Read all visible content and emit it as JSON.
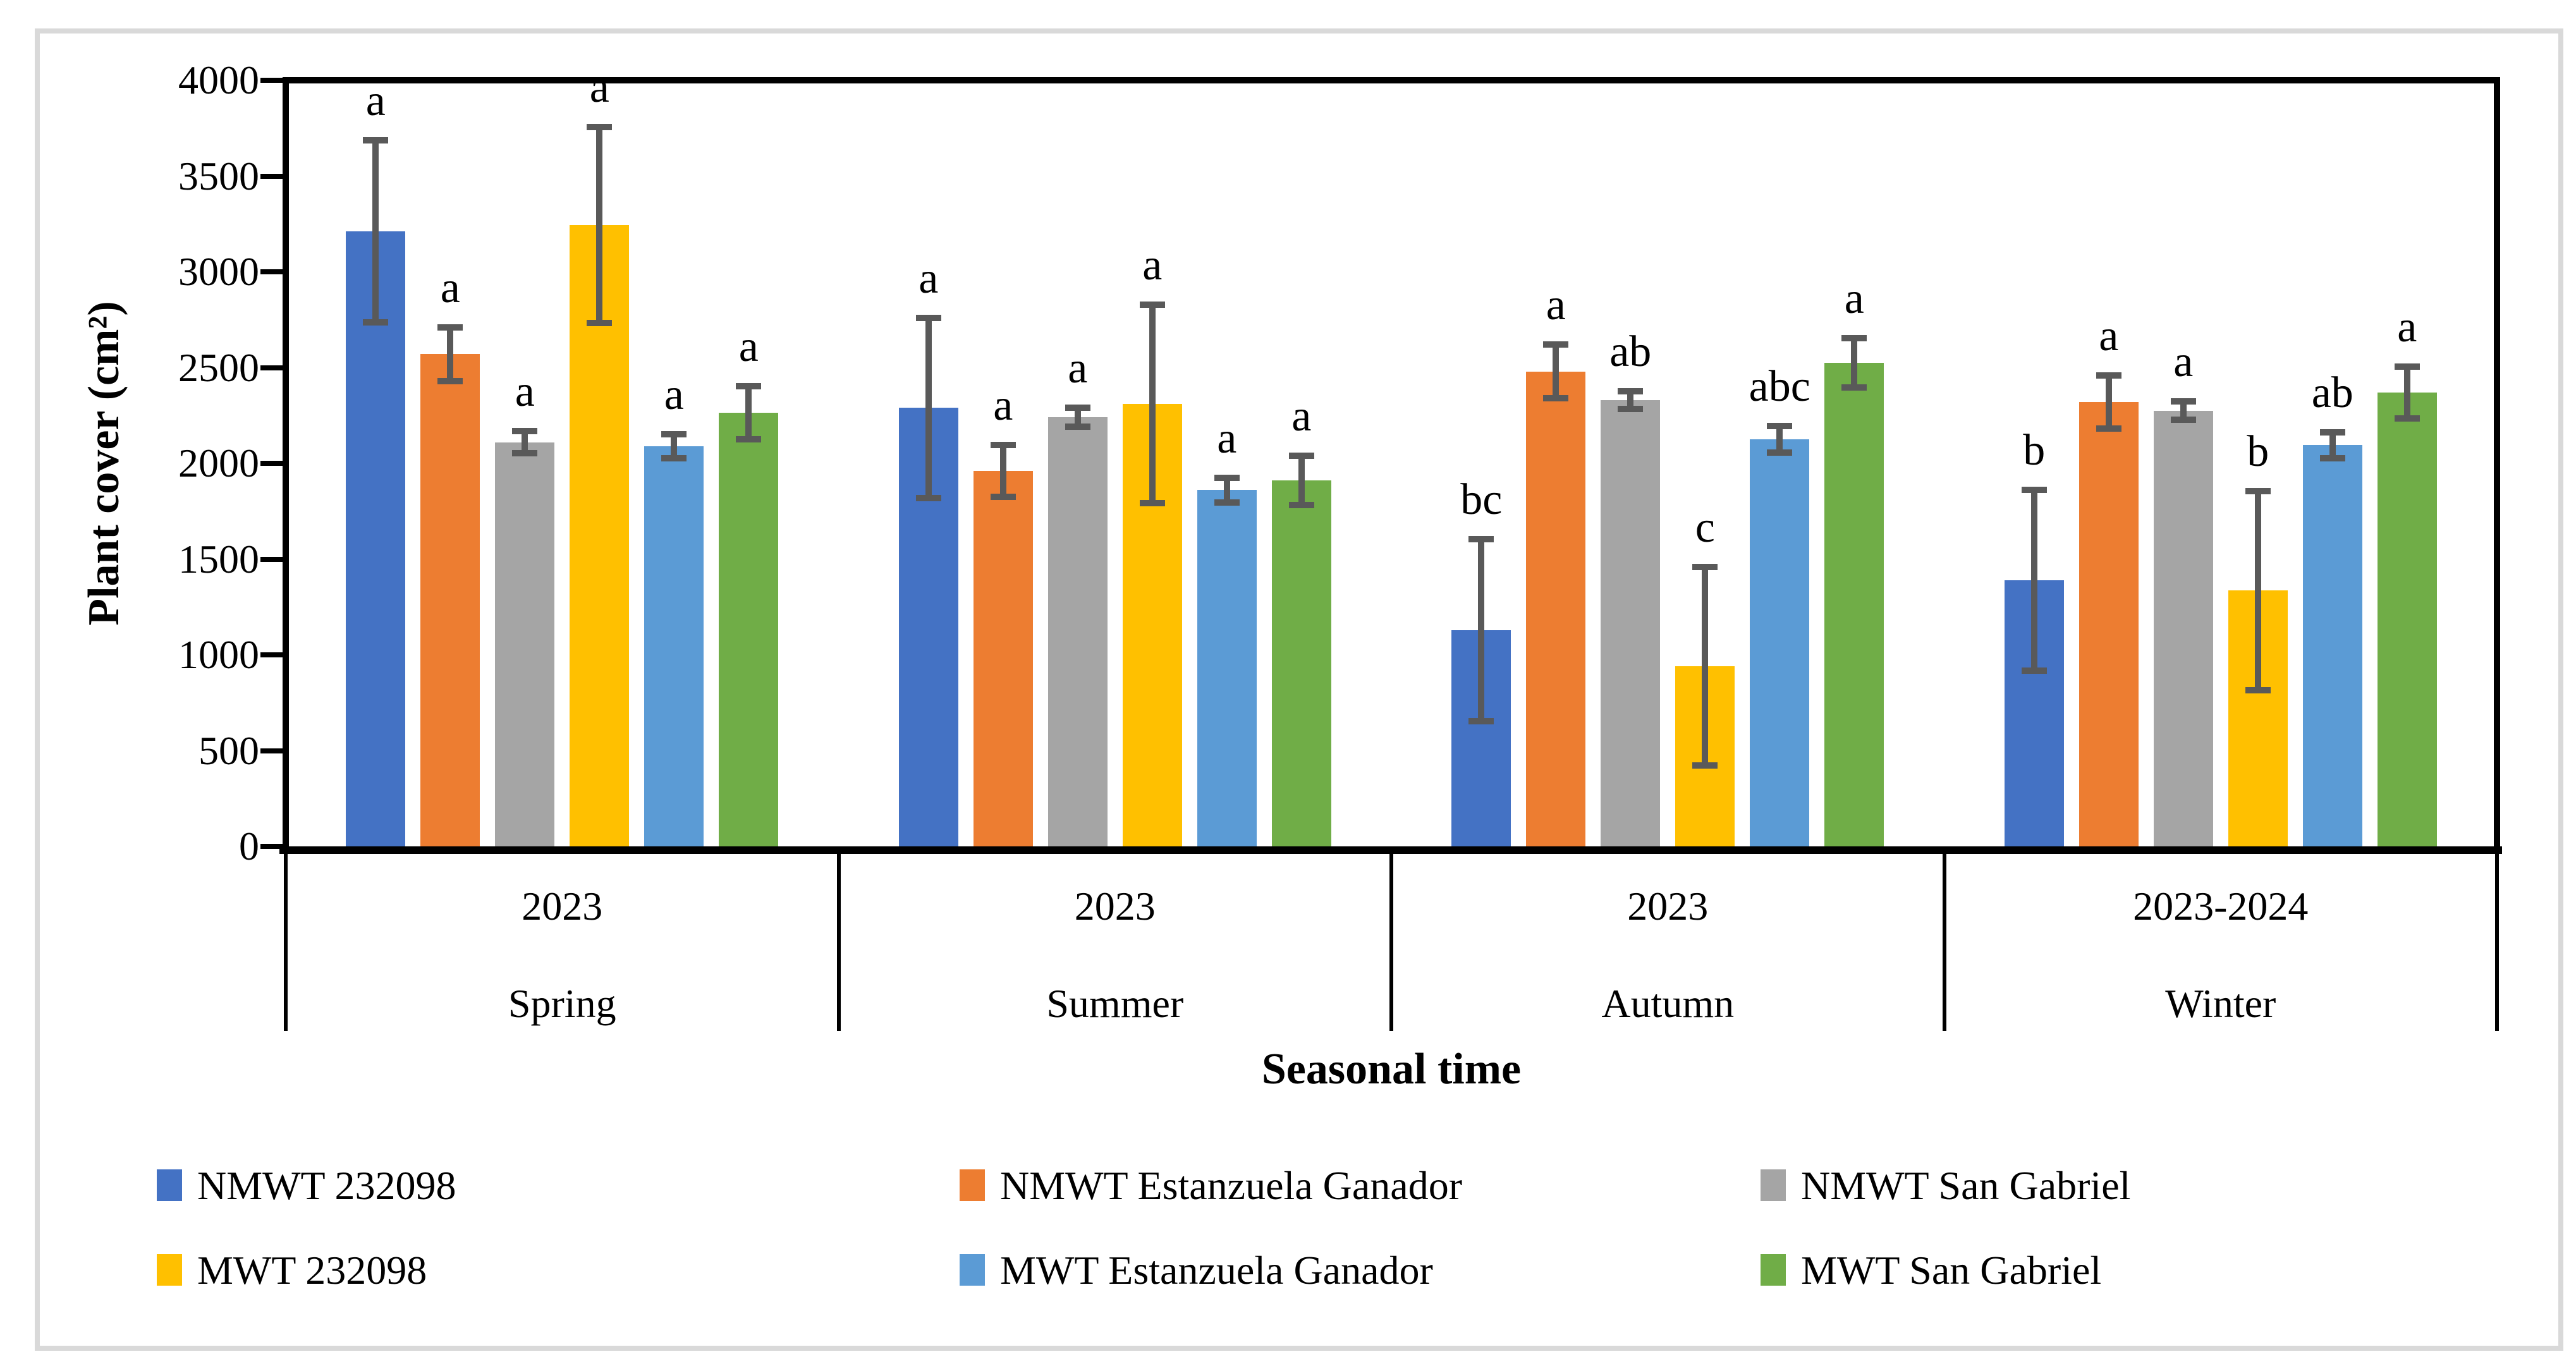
{
  "figure": {
    "background_color": "#FFFFFF",
    "frame_color": "#D9D9D9"
  },
  "chart_data": {
    "type": "bar",
    "title": "",
    "ylabel": "Plant cover (cm²)",
    "xlabel": "Seasonal time",
    "ylim": [
      0,
      4000
    ],
    "ytick_step": 500,
    "grid": false,
    "legend_position": "bottom",
    "axis_color": "#000000",
    "error_bar_color": "#595959",
    "groups": [
      {
        "year": "2023",
        "season": "Spring"
      },
      {
        "year": "2023",
        "season": "Summer"
      },
      {
        "year": "2023",
        "season": "Autumn"
      },
      {
        "year": "2023-2024",
        "season": "Winter"
      }
    ],
    "series": [
      {
        "name": "NMWT 232098",
        "color": "#4472C4",
        "values": [
          3210,
          2290,
          1130,
          1390
        ],
        "errors": [
          475,
          470,
          475,
          472
        ],
        "letters": [
          "a",
          "a",
          "bc",
          "b"
        ]
      },
      {
        "name": "NMWT Estanzuela Ganador",
        "color": "#ED7D31",
        "values": [
          2570,
          1960,
          2480,
          2320
        ],
        "errors": [
          140,
          135,
          140,
          140
        ],
        "letters": [
          "a",
          "a",
          "a",
          "a"
        ]
      },
      {
        "name": "NMWT San Gabriel",
        "color": "#A5A5A5",
        "values": [
          2110,
          2240,
          2330,
          2275
        ],
        "errors": [
          57,
          50,
          45,
          47
        ],
        "letters": [
          "a",
          "a",
          "ab",
          "a"
        ]
      },
      {
        "name": "MWT 232098",
        "color": "#FFC000",
        "values": [
          3245,
          2310,
          940,
          1335
        ],
        "errors": [
          512,
          518,
          518,
          520
        ],
        "letters": [
          "a",
          "a",
          "c",
          "b"
        ]
      },
      {
        "name": "MWT Estanzuela Ganador",
        "color": "#5B9BD5",
        "values": [
          2090,
          1860,
          2125,
          2095
        ],
        "errors": [
          63,
          65,
          70,
          68
        ],
        "letters": [
          "a",
          "a",
          "abc",
          "ab"
        ]
      },
      {
        "name": "MWT San Gabriel",
        "color": "#70AD47",
        "values": [
          2265,
          1910,
          2525,
          2370
        ],
        "errors": [
          138,
          128,
          130,
          135
        ],
        "letters": [
          "a",
          "a",
          "a",
          "a"
        ]
      }
    ]
  }
}
